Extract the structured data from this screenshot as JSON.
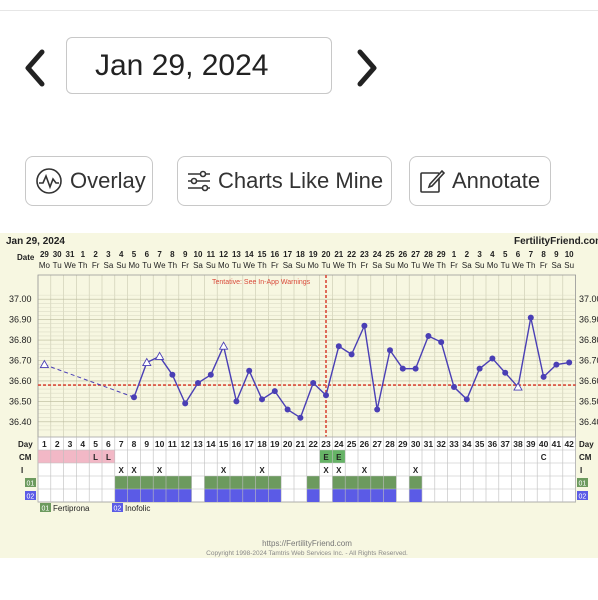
{
  "header": {
    "date": "Jan 29, 2024"
  },
  "toolbar": {
    "overlay": "Overlay",
    "charts_like_mine": "Charts Like Mine",
    "annotate": "Annotate"
  },
  "chart_header": {
    "date": "Jan 29, 2024",
    "site": "FertilityFriend.com"
  },
  "chart_labels": {
    "date_row": "Date",
    "day_row": "Day",
    "cm_row": "CM",
    "i_row": "I",
    "tentative": "Tentative: See In-App Warnings"
  },
  "footer": {
    "url": "https://FertilityFriend.com",
    "copyright": "Copyright 1998-2024 Tamtris Web Services Inc. - All Rights Reserved."
  },
  "legend": [
    {
      "code": "01",
      "label": "Fertiprona",
      "color": "#6c9a5e"
    },
    {
      "code": "02",
      "label": "Inofolic",
      "color": "#5b5be6"
    }
  ],
  "dates": [
    "29",
    "30",
    "31",
    "1",
    "2",
    "3",
    "4",
    "5",
    "6",
    "7",
    "8",
    "9",
    "10",
    "11",
    "12",
    "13",
    "14",
    "15",
    "16",
    "17",
    "18",
    "19",
    "20",
    "21",
    "22",
    "23",
    "24",
    "25",
    "26",
    "27",
    "28",
    "29",
    "1",
    "2",
    "3",
    "4",
    "5",
    "6",
    "7",
    "8",
    "9",
    "10"
  ],
  "weekdays": [
    "Mo",
    "Tu",
    "We",
    "Th",
    "Fr",
    "Sa",
    "Su",
    "Mo",
    "Tu",
    "We",
    "Th",
    "Fr",
    "Sa",
    "Su",
    "Mo",
    "Tu",
    "We",
    "Th",
    "Fr",
    "Sa",
    "Su",
    "Mo",
    "Tu",
    "We",
    "Th",
    "Fr",
    "Sa",
    "Su",
    "Mo",
    "Tu",
    "We",
    "Th",
    "Fr",
    "Sa",
    "Su",
    "Mo",
    "Tu",
    "We",
    "Th",
    "Fr",
    "Sa",
    "Su"
  ],
  "cm": [
    "",
    "",
    "",
    "",
    "L",
    "L",
    "",
    "",
    "",
    "",
    "",
    "",
    "",
    "",
    "",
    "",
    "",
    "",
    "",
    "",
    "",
    "",
    "E",
    "E",
    "",
    "",
    "",
    "",
    "",
    "",
    "",
    "",
    "",
    "",
    "",
    "",
    "",
    "",
    "",
    "C",
    "",
    ""
  ],
  "intercourse": [
    "",
    "",
    "",
    "",
    "",
    "",
    "X",
    "X",
    "",
    "X",
    "",
    "",
    "",
    "",
    "X",
    "",
    "",
    "X",
    "",
    "",
    "",
    "",
    "X",
    "X",
    "",
    "X",
    "",
    "",
    "",
    "X",
    "",
    "",
    "",
    "",
    "",
    "",
    "",
    "",
    "",
    "",
    "",
    ""
  ],
  "colors": {
    "menses": "#f2b8c6",
    "line": "#4a3fb5",
    "coverline": "#d94a3a",
    "ovulation": "#d94a3a",
    "fertiprona": "#6c9a5e",
    "inofolic": "#5b5be6",
    "green_cm": "#66b366"
  },
  "chart_data": {
    "type": "line",
    "ylim": [
      36.35,
      37.05
    ],
    "ticks": [
      "37.00",
      "36.90",
      "36.80",
      "36.70",
      "36.60",
      "36.50",
      "36.40"
    ],
    "coverline": 36.58,
    "ovulation_day": 23,
    "days": [
      1,
      2,
      3,
      4,
      5,
      6,
      7,
      8,
      9,
      10,
      11,
      12,
      13,
      14,
      15,
      16,
      17,
      18,
      19,
      20,
      21,
      22,
      23,
      24,
      25,
      26,
      27,
      28,
      29,
      30,
      31,
      32,
      33,
      34,
      35,
      36,
      37,
      38,
      39,
      40,
      41,
      42
    ],
    "temps": [
      36.68,
      null,
      null,
      null,
      null,
      null,
      null,
      36.52,
      36.69,
      36.72,
      36.63,
      36.49,
      36.59,
      36.63,
      36.77,
      36.5,
      36.65,
      36.51,
      36.55,
      36.46,
      36.42,
      36.59,
      36.53,
      36.77,
      36.73,
      36.87,
      36.46,
      36.75,
      36.66,
      36.66,
      36.82,
      36.79,
      36.57,
      36.51,
      36.66,
      36.71,
      36.64,
      36.57,
      36.91,
      36.62,
      36.68,
      36.69
    ],
    "open_markers": [
      1,
      9,
      10,
      15,
      38
    ],
    "fertiprona_days": [
      7,
      8,
      9,
      10,
      11,
      12,
      14,
      15,
      16,
      17,
      18,
      19,
      22,
      24,
      25,
      26,
      27,
      28,
      30
    ],
    "inofolic_days": [
      7,
      8,
      9,
      10,
      11,
      12,
      14,
      15,
      16,
      17,
      18,
      19,
      22,
      24,
      25,
      26,
      27,
      28,
      30
    ]
  }
}
